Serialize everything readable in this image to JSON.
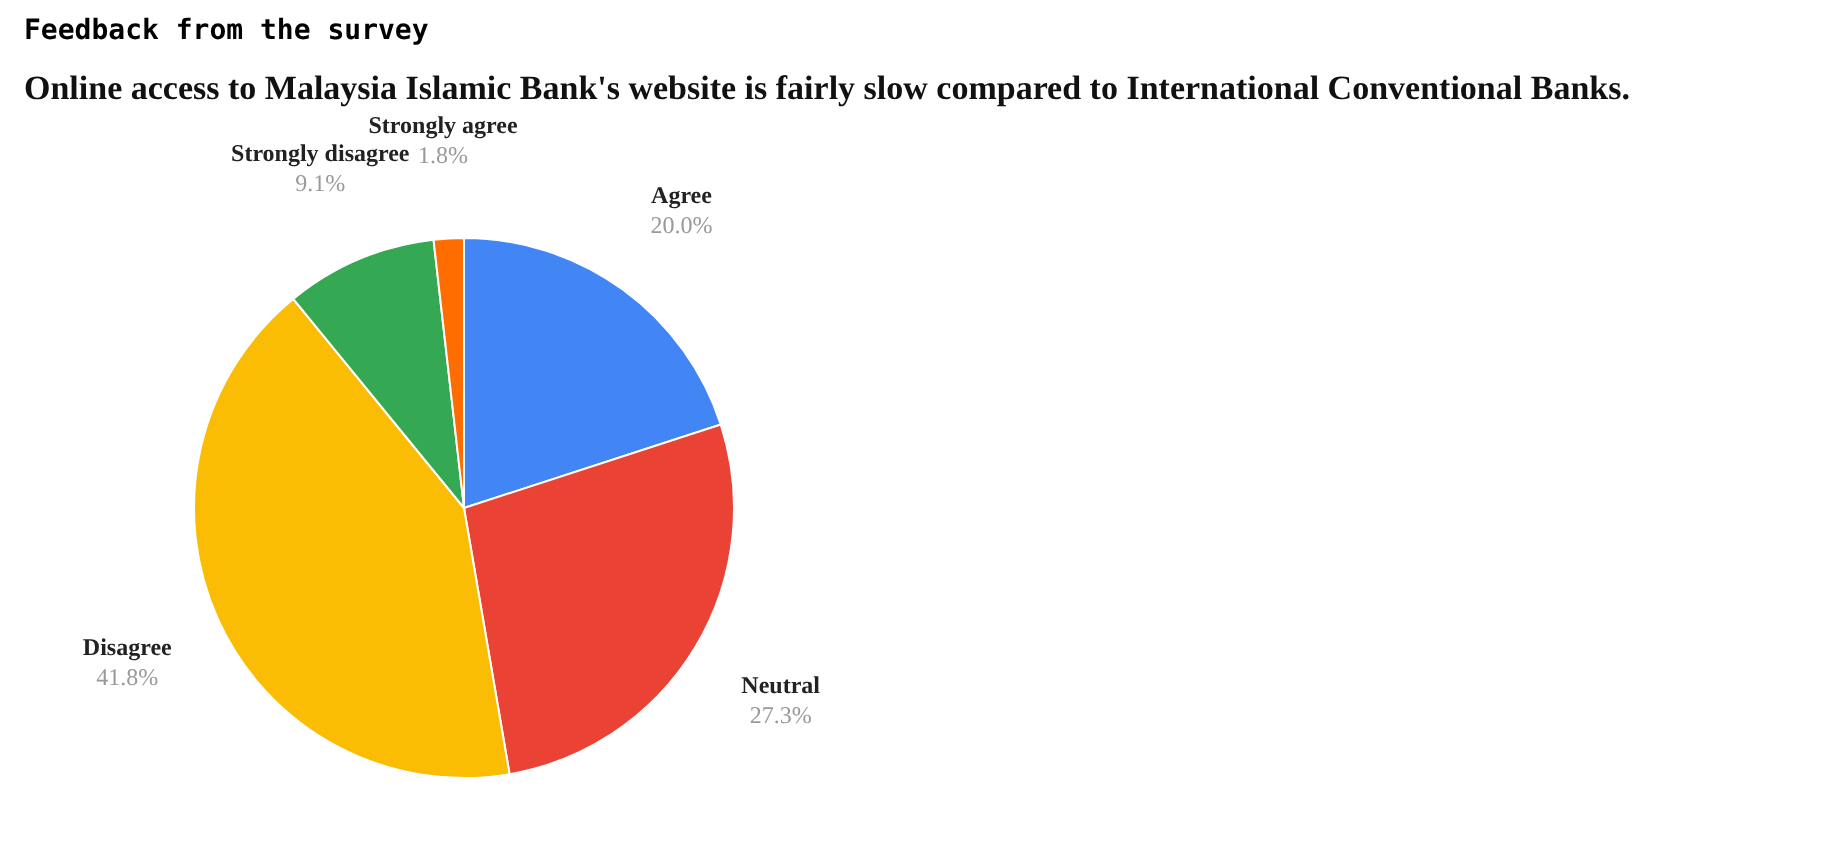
{
  "chart_data": {
    "type": "pie",
    "title": "Feedback from the survey",
    "subtitle": "Online access to Malaysia Islamic Bank's website is fairly slow compared to International Conventional Banks.",
    "categories": [
      "Agree",
      "Neutral",
      "Disagree",
      "Strongly disagree",
      "Strongly agree"
    ],
    "values": [
      20.0,
      27.3,
      41.8,
      9.1,
      1.8
    ],
    "value_labels": [
      "20.0%",
      "27.3%",
      "41.8%",
      "9.1%",
      "1.8%"
    ],
    "colors": [
      "#4285f4",
      "#ea4335",
      "#fbbc04",
      "#34a853",
      "#ff6d01"
    ],
    "legend": false
  }
}
